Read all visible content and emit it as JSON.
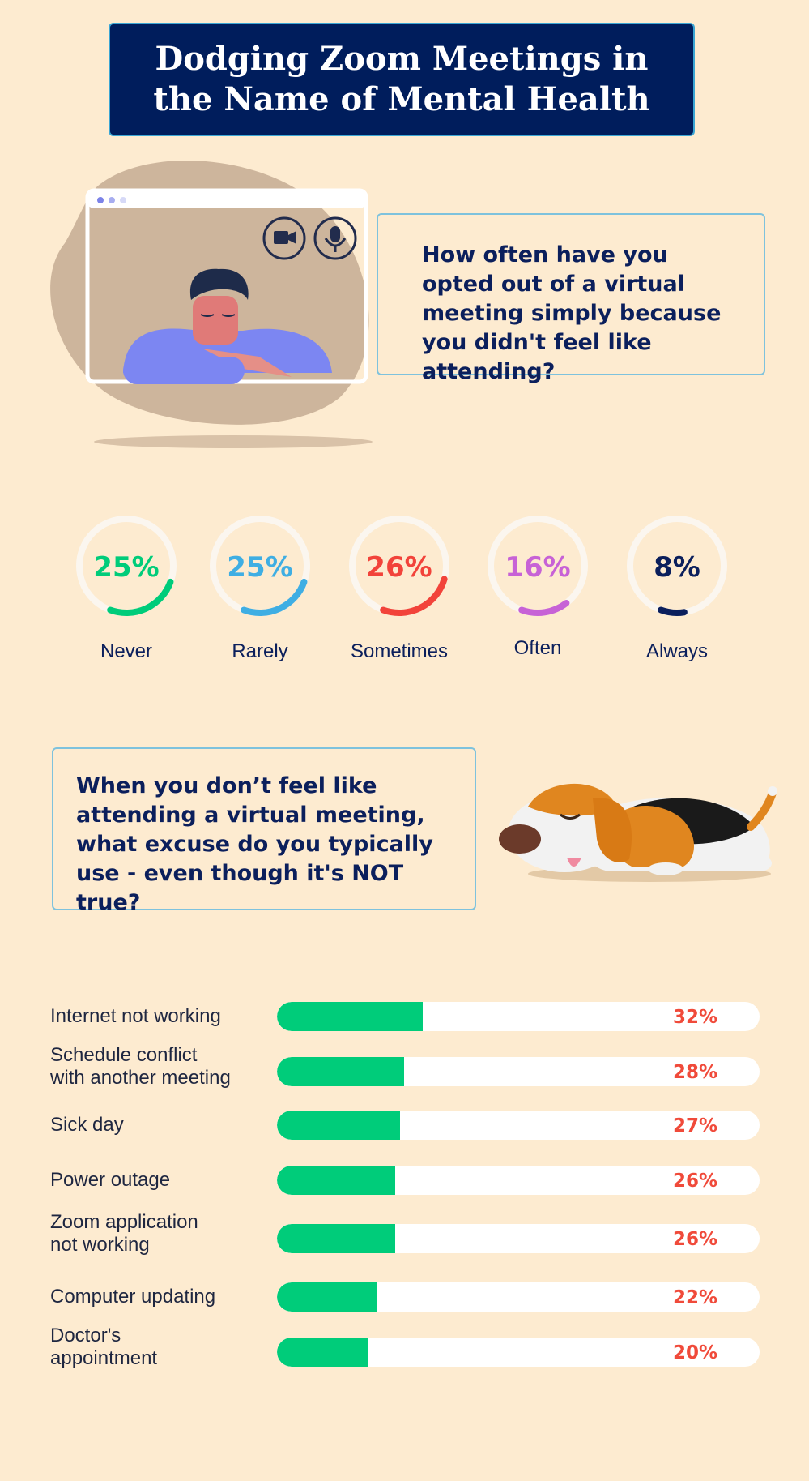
{
  "title": "Dodging Zoom Meetings in the Name of Mental Health",
  "question1": "How often have you opted out of a virtual meeting simply because you didn't feel like attending?",
  "question2": "When you don’t feel like attending a virtual meeting, what excuse do you typically use - even though it's NOT true?",
  "colors": {
    "background": "#FDEBD0",
    "title_bg": "#001D5C",
    "bar_fill": "#00CC7A",
    "bar_value": "#F04A3A"
  },
  "chart_data": [
    {
      "type": "pie",
      "categories": [
        "Never",
        "Rarely",
        "Sometimes",
        "Often",
        "Always"
      ],
      "values": [
        25,
        25,
        26,
        16,
        8
      ],
      "value_labels": [
        "25%",
        "25%",
        "26%",
        "16%",
        "8%"
      ],
      "colors": [
        "#00CC7A",
        "#3FAEE3",
        "#F2433A",
        "#C762D6",
        "#0B1F5C"
      ]
    },
    {
      "type": "bar",
      "orientation": "horizontal",
      "categories": [
        "Internet not working",
        "Schedule conflict with another meeting",
        "Sick day",
        "Power outage",
        "Zoom application not working",
        "Computer updating",
        "Doctor's appointment"
      ],
      "category_lines": [
        [
          "Internet not working"
        ],
        [
          "Schedule conflict",
          "with another meeting"
        ],
        [
          "Sick day"
        ],
        [
          "Power outage"
        ],
        [
          "Zoom application",
          "not working"
        ],
        [
          "Computer updating"
        ],
        [
          "Doctor's",
          "appointment"
        ]
      ],
      "values": [
        32,
        28,
        27,
        26,
        26,
        22,
        20
      ],
      "value_labels": [
        "32%",
        "28%",
        "27%",
        "26%",
        "26%",
        "22%",
        "20%"
      ]
    }
  ]
}
